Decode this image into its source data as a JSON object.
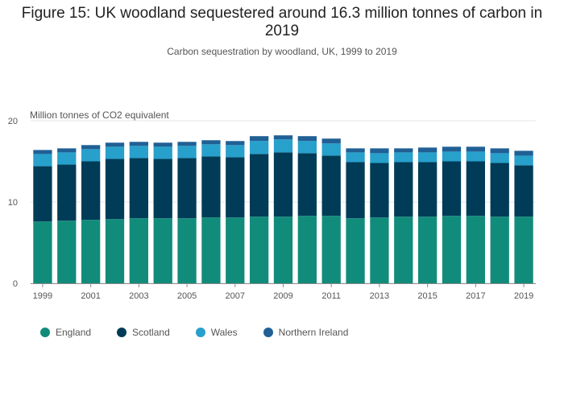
{
  "chart_data": {
    "type": "bar",
    "stacked": true,
    "title": "Figure 15: UK woodland sequestered around 16.3 million tonnes of carbon in 2019",
    "subtitle": "Carbon sequestration by woodland, UK, 1999 to 2019",
    "ylabel": "Million tonnes of CO2 equivalent",
    "xlabel": "",
    "ylim": [
      0,
      20
    ],
    "yticks": [
      0,
      10,
      20
    ],
    "grid": true,
    "legend_position": "bottom-left",
    "categories": [
      "1999",
      "2000",
      "2001",
      "2002",
      "2003",
      "2004",
      "2005",
      "2006",
      "2007",
      "2008",
      "2009",
      "2010",
      "2011",
      "2012",
      "2013",
      "2014",
      "2015",
      "2016",
      "2017",
      "2018",
      "2019"
    ],
    "xtick_labels": [
      "1999",
      "2001",
      "2003",
      "2005",
      "2007",
      "2009",
      "2011",
      "2013",
      "2015",
      "2017",
      "2019"
    ],
    "series": [
      {
        "name": "England",
        "color": "#118c7b",
        "values": [
          7.6,
          7.7,
          7.8,
          7.9,
          8.0,
          8.0,
          8.0,
          8.1,
          8.1,
          8.2,
          8.2,
          8.3,
          8.3,
          8.0,
          8.1,
          8.2,
          8.2,
          8.3,
          8.3,
          8.2,
          8.2
        ]
      },
      {
        "name": "Scotland",
        "color": "#003c57",
        "values": [
          6.8,
          6.9,
          7.2,
          7.4,
          7.4,
          7.3,
          7.4,
          7.5,
          7.4,
          7.7,
          7.9,
          7.7,
          7.4,
          6.9,
          6.7,
          6.7,
          6.7,
          6.7,
          6.7,
          6.6,
          6.3
        ]
      },
      {
        "name": "Wales",
        "color": "#27a0cc",
        "values": [
          1.5,
          1.5,
          1.5,
          1.5,
          1.5,
          1.5,
          1.5,
          1.5,
          1.5,
          1.6,
          1.6,
          1.5,
          1.5,
          1.2,
          1.2,
          1.2,
          1.2,
          1.2,
          1.2,
          1.2,
          1.2
        ]
      },
      {
        "name": "Northern Ireland",
        "color": "#206095",
        "values": [
          0.5,
          0.5,
          0.5,
          0.5,
          0.5,
          0.5,
          0.5,
          0.5,
          0.5,
          0.6,
          0.5,
          0.6,
          0.6,
          0.5,
          0.6,
          0.5,
          0.6,
          0.6,
          0.6,
          0.6,
          0.6
        ]
      }
    ]
  }
}
